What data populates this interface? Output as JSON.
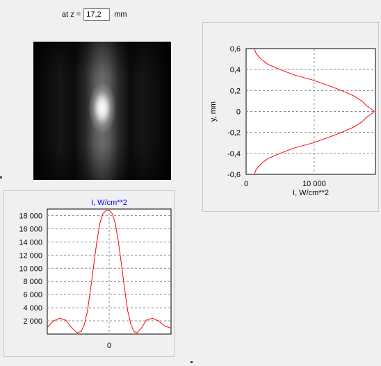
{
  "z_control": {
    "label": "at z =",
    "value": "17,2",
    "unit": "mm"
  },
  "colors": {
    "curve": "#ff0000",
    "grid": "#8c8c8c",
    "title": "#0000ff",
    "plot_bg": "#ffffff"
  },
  "beam_image": {
    "description_icon": "beam-intensity-image"
  },
  "chart_data": [
    {
      "type": "line",
      "title": "",
      "xlabel": "I, W/cm**2",
      "ylabel": "y, mm",
      "xlim": [
        0,
        19000
      ],
      "ylim": [
        -0.6,
        0.6
      ],
      "x_ticks": [
        "0",
        "10 000"
      ],
      "y_ticks": [
        "0,6",
        "0,4",
        "0,2",
        "0",
        "-0,2",
        "-0,4",
        "-0,6"
      ],
      "grid": true,
      "series": [
        {
          "x": [
            1200,
            1500,
            2200,
            3200,
            5000,
            7000,
            9800,
            12000,
            14000,
            15800,
            17000,
            17800,
            18500,
            18800,
            18500,
            17800,
            17000,
            15800,
            14000,
            12000,
            9800,
            7000,
            5000,
            3200,
            2200,
            1500,
            1200
          ],
          "y": [
            0.6,
            0.55,
            0.5,
            0.45,
            0.4,
            0.35,
            0.3,
            0.25,
            0.2,
            0.15,
            0.1,
            0.05,
            0.02,
            0,
            -0.02,
            -0.05,
            -0.1,
            -0.15,
            -0.2,
            -0.25,
            -0.3,
            -0.35,
            -0.4,
            -0.45,
            -0.5,
            -0.55,
            -0.6
          ]
        }
      ]
    },
    {
      "type": "line",
      "title": "I, W/cm**2",
      "xlabel": "",
      "ylabel": "",
      "xlim": [
        -1,
        1
      ],
      "ylim": [
        0,
        19000
      ],
      "x_ticks": [
        "0"
      ],
      "y_ticks": [
        "18 000",
        "16 000",
        "14 000",
        "12 000",
        "10 000",
        "8 000",
        "6 000",
        "4 000",
        "2 000"
      ],
      "grid": true,
      "series": [
        {
          "x": [
            -1,
            -0.9,
            -0.8,
            -0.7,
            -0.6,
            -0.52,
            -0.45,
            -0.4,
            -0.35,
            -0.3,
            -0.25,
            -0.2,
            -0.15,
            -0.1,
            -0.05,
            0,
            0.05,
            0.1,
            0.15,
            0.2,
            0.25,
            0.3,
            0.35,
            0.4,
            0.45,
            0.52,
            0.6,
            0.7,
            0.8,
            0.9,
            1
          ],
          "y": [
            1000,
            2000,
            2400,
            2100,
            900,
            200,
            400,
            1500,
            3500,
            6800,
            10500,
            14000,
            16800,
            18300,
            18800,
            18800,
            18300,
            16800,
            14000,
            10500,
            6800,
            3500,
            1500,
            400,
            200,
            900,
            2100,
            2400,
            2000,
            1200,
            900
          ]
        }
      ]
    }
  ]
}
